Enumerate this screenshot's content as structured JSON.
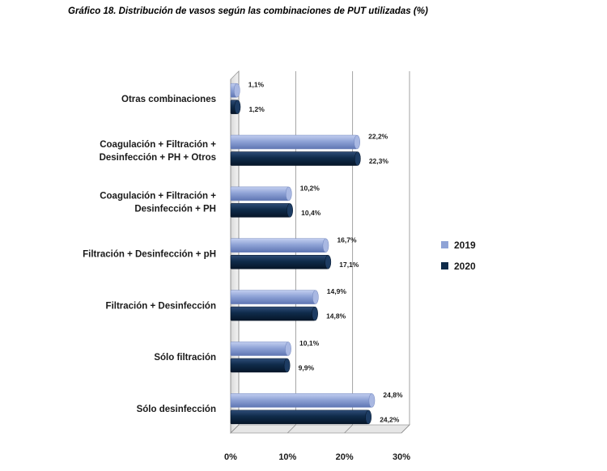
{
  "title": "Gráfico 18. Distribución de vasos según las combinaciones de PUT utilizadas (%)",
  "chart_data": {
    "type": "bar",
    "orientation": "horizontal",
    "title": "Gráfico 18. Distribución de vasos según las combinaciones de PUT utilizadas (%)",
    "categories": [
      [
        "Otras combinaciones"
      ],
      [
        "Coagulación + Filtración +",
        "Desinfección + PH + Otros"
      ],
      [
        "Coagulación + Filtración +",
        "Desinfección + PH"
      ],
      [
        "Filtración + Desinfección + pH"
      ],
      [
        "Filtración + Desinfección"
      ],
      [
        "Sólo filtración"
      ],
      [
        "Sólo desinfección"
      ]
    ],
    "series": [
      {
        "name": "2019",
        "color": "#8fa3d6",
        "values": [
          1.1,
          22.2,
          10.2,
          16.7,
          14.9,
          10.1,
          24.8
        ],
        "labels": [
          "1,1%",
          "22,2%",
          "10,2%",
          "16,7%",
          "14,9%",
          "10,1%",
          "24,8%"
        ]
      },
      {
        "name": "2020",
        "color": "#0f2b4a",
        "values": [
          1.2,
          22.3,
          10.4,
          17.1,
          14.8,
          9.9,
          24.2
        ],
        "labels": [
          "1,2%",
          "22,3%",
          "10,4%",
          "17,1%",
          "14,8%",
          "9,9%",
          "24,2%"
        ]
      }
    ],
    "xlim": [
      0,
      30
    ],
    "xticks": [
      0,
      10,
      20,
      30
    ],
    "xtick_labels": [
      "0%",
      "10%",
      "20%",
      "30%"
    ],
    "grid": true,
    "legend": "right"
  }
}
